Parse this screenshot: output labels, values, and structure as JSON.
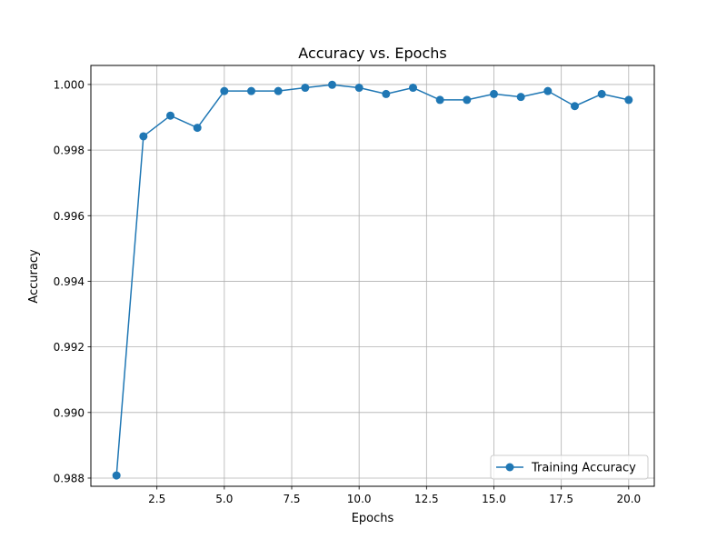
{
  "chart_data": {
    "type": "line",
    "title": "Accuracy vs. Epochs",
    "xlabel": "Epochs",
    "ylabel": "Accuracy",
    "xlim": [
      0.05,
      20.95
    ],
    "ylim": [
      0.98775,
      1.00058
    ],
    "xticks": [
      2.5,
      5.0,
      7.5,
      10.0,
      12.5,
      15.0,
      17.5,
      20.0
    ],
    "xtick_labels": [
      "2.5",
      "5.0",
      "7.5",
      "10.0",
      "12.5",
      "15.0",
      "17.5",
      "20.0"
    ],
    "yticks": [
      0.988,
      0.99,
      0.992,
      0.994,
      0.996,
      0.998,
      1.0
    ],
    "ytick_labels": [
      "0.988",
      "0.990",
      "0.992",
      "0.994",
      "0.996",
      "0.998",
      "1.000"
    ],
    "grid": true,
    "legend_position": "lower-right",
    "series": [
      {
        "name": "Training Accuracy",
        "color": "#1f77b4",
        "marker": "circle",
        "x": [
          1,
          2,
          3,
          4,
          5,
          6,
          7,
          8,
          9,
          10,
          11,
          12,
          13,
          14,
          15,
          16,
          17,
          18,
          19,
          20
        ],
        "y": [
          0.98808,
          0.99842,
          0.99905,
          0.99868,
          0.9998,
          0.9998,
          0.9998,
          0.9999,
          0.99999,
          0.9999,
          0.99971,
          0.9999,
          0.99953,
          0.99953,
          0.99971,
          0.99962,
          0.9998,
          0.99934,
          0.99971,
          0.99953
        ]
      }
    ]
  }
}
